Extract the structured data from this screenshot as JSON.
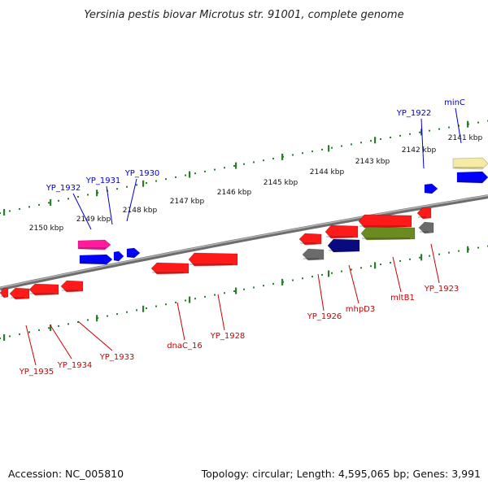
{
  "title": "Yersinia pestis biovar Microtus str. 91001, complete genome",
  "footer": {
    "accession": "Accession: NC_005810",
    "summary": "Topology: circular; Length: 4,595,065 bp; Genes: 3,991"
  },
  "colors": {
    "forward_label": "#0000cc",
    "reverse_label": "#cc0000",
    "ruler_tick": "#2a7d2a",
    "backbone": "#8a8a8a"
  },
  "tick_labels": [
    "2141 kbp",
    "2142 kbp",
    "2143 kbp",
    "2144 kbp",
    "2145 kbp",
    "2146 kbp",
    "2147 kbp",
    "2148 kbp",
    "2149 kbp",
    "2150 kbp"
  ],
  "forward_labels": [
    "YP_1932",
    "YP_1931",
    "YP_1930",
    "YP_1922",
    "minC"
  ],
  "reverse_labels": [
    "YP_1935",
    "YP_1934",
    "YP_1933",
    "dnaC_16",
    "YP_1928",
    "YP_1926",
    "mhpD3",
    "mltB1",
    "YP_1923"
  ]
}
